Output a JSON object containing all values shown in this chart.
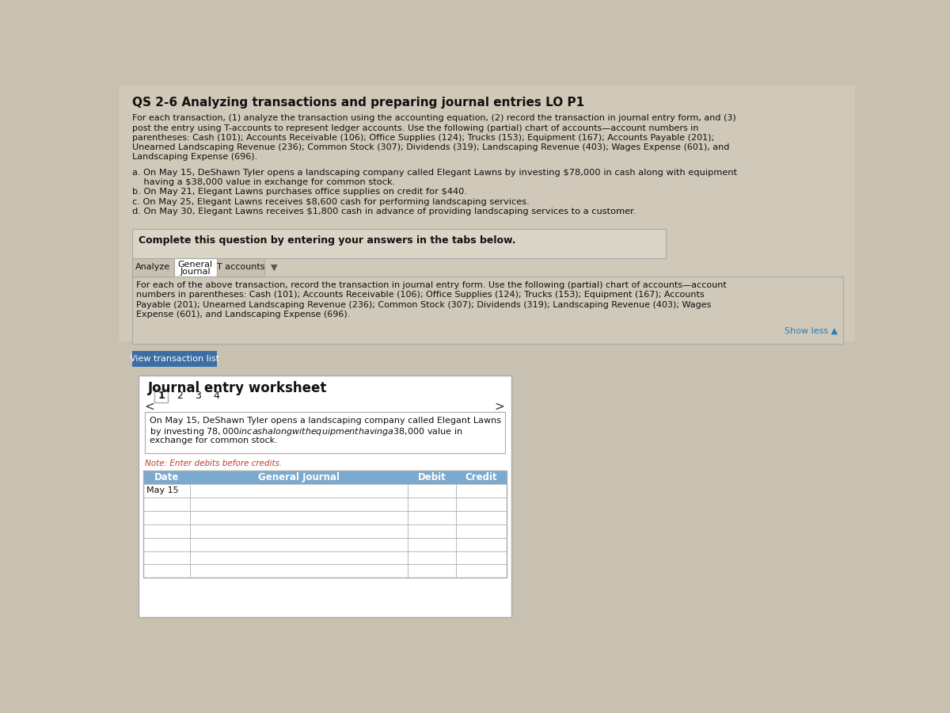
{
  "title": "QS 2-6 Analyzing transactions and preparing journal entries LO P1",
  "page_bg": "#c8c0b0",
  "top_bg": "#d0c8b8",
  "intro_text_line1": "For each transaction, (1) analyze the transaction using the accounting equation, (2) record the transaction in journal entry form, and (3)",
  "intro_text_line2": "post the entry using T-accounts to represent ledger accounts. Use the following (partial) chart of accounts—account numbers in",
  "intro_text_line3": "parentheses: Cash (101); Accounts Receivable (106); Office Supplies (124); Trucks (153); Equipment (167); Accounts Payable (201);",
  "intro_text_line4": "Unearned Landscaping Revenue (236); Common Stock (307); Dividends (319); Landscaping Revenue (403); Wages Expense (601), and",
  "intro_text_line5": "Landscaping Expense (696).",
  "trans_a_line1": "a. On May 15, DeShawn Tyler opens a landscaping company called Elegant Lawns by investing $78,000 in cash along with equipment",
  "trans_a_line2": "    having a $38,000 value in exchange for common stock.",
  "trans_b": "b. On May 21, Elegant Lawns purchases office supplies on credit for $440.",
  "trans_c": "c. On May 25, Elegant Lawns receives $8,600 cash for performing landscaping services.",
  "trans_d": "d. On May 30, Elegant Lawns receives $1,800 cash in advance of providing landscaping services to a customer.",
  "complete_text": "Complete this question by entering your answers in the tabs below.",
  "tab1": "Analyze",
  "tab2_line1": "General",
  "tab2_line2": "Journal",
  "tab3": "T accounts",
  "tab_arrow": "▼",
  "gj_text_line1": "For each of the above transaction, record the transaction in journal entry form. Use the following (partial) chart of accounts—account",
  "gj_text_line2": "numbers in parentheses: Cash (101); Accounts Receivable (106); Office Supplies (124); Trucks (153); Equipment (167); Accounts",
  "gj_text_line3": "Payable (201); Unearned Landscaping Revenue (236); Common Stock (307); Dividends (319); Landscaping Revenue (403); Wages",
  "gj_text_line4": "Expense (601), and Landscaping Expense (696).",
  "show_less_text": "Show less ▲",
  "view_transaction_btn": "View transaction list",
  "worksheet_title": "Journal entry worksheet",
  "page_numbers": [
    "1",
    "2",
    "3",
    "4"
  ],
  "active_page": "1",
  "transaction_description_line1": "On May 15, DeShawn Tyler opens a landscaping company called Elegant Lawns",
  "transaction_description_line2": "by investing $78,000 in cash along with equipment having a $38,000 value in",
  "transaction_description_line3": "exchange for common stock.",
  "note_text": "Note: Enter debits before credits.",
  "table_headers": [
    "Date",
    "General Journal",
    "Debit",
    "Credit"
  ],
  "table_first_date": "May 15",
  "white": "#ffffff",
  "off_white": "#f5f5f5",
  "light_gray": "#e0ddd8",
  "complete_box_bg": "#dbd5c8",
  "table_header_bg": "#7aaad0",
  "table_header_text": "#ffffff",
  "tab_active_bg": "#ffffff",
  "tab_inactive_bg": "#c8c0b0",
  "tab_border": "#aaaaaa",
  "blue_btn_bg": "#3a6ea5",
  "blue_btn_text": "#ffffff",
  "note_color": "#c0392b",
  "show_less_color": "#2980b9",
  "border_color": "#aaaaaa",
  "text_color": "#111111",
  "worksheet_bg": "#d0c8b8"
}
